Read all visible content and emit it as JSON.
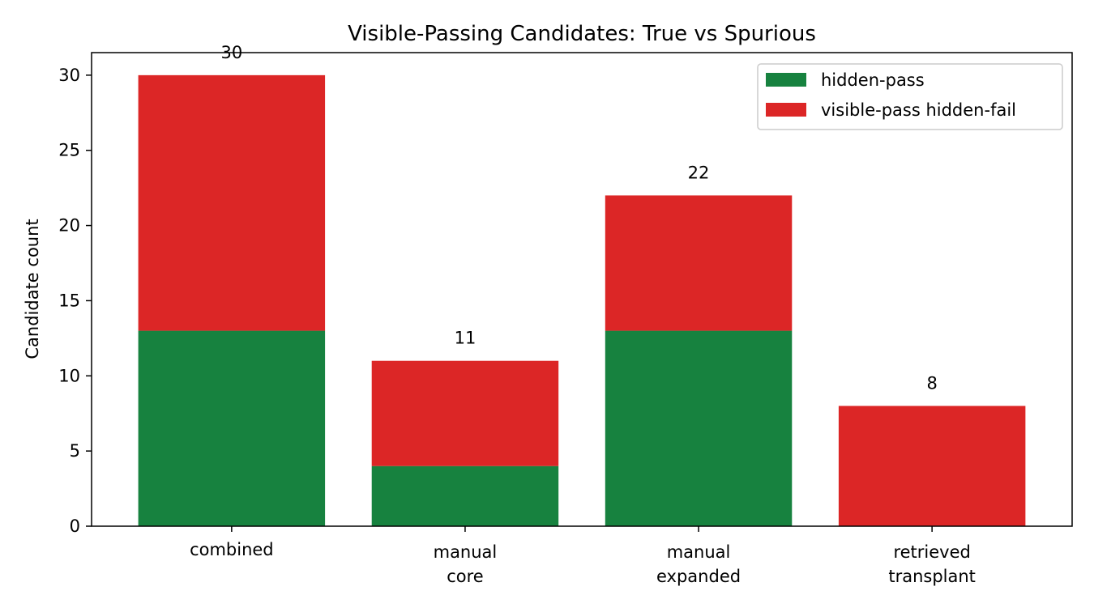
{
  "chart_data": {
    "type": "bar",
    "stacked": true,
    "title": "Visible-Passing Candidates: True vs Spurious",
    "xlabel": "",
    "ylabel": "Candidate count",
    "ylim": [
      0,
      31.5
    ],
    "yticks": [
      0,
      5,
      10,
      15,
      20,
      25,
      30
    ],
    "categories": [
      [
        "combined"
      ],
      [
        "manual",
        "core"
      ],
      [
        "manual",
        "expanded"
      ],
      [
        "retrieved",
        "transplant"
      ]
    ],
    "series": [
      {
        "name": "hidden-pass",
        "color": "#17823f",
        "values": [
          13,
          4,
          13,
          0
        ]
      },
      {
        "name": "visible-pass hidden-fail",
        "color": "#dc2626",
        "values": [
          17,
          7,
          9,
          8
        ]
      }
    ],
    "totals": [
      "30",
      "11",
      "22",
      "8"
    ],
    "legend": {
      "position": "top-right"
    },
    "grid": false
  }
}
